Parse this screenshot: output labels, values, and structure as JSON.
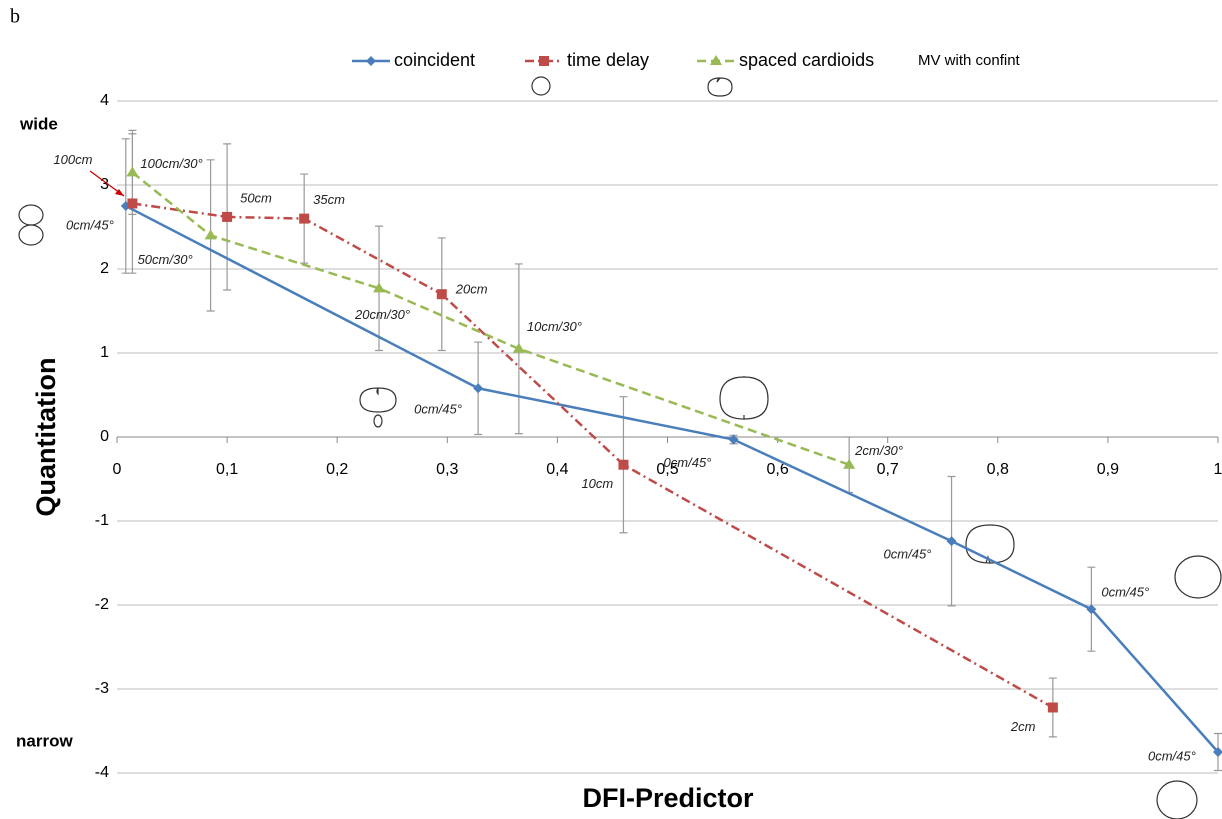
{
  "panel_label": "b",
  "chart_data": {
    "type": "line",
    "xlabel": "DFI-Predictor",
    "ylabel": "Quantitation",
    "upper_label": "wide",
    "lower_label": "narrow",
    "xlim": [
      0,
      1
    ],
    "ylim": [
      -4,
      4
    ],
    "xticks": [
      0,
      {
        "value": 0.1,
        "label": "0,1"
      },
      {
        "value": 0.2,
        "label": "0,2"
      },
      {
        "value": 0.3,
        "label": "0,3"
      },
      {
        "value": 0.4,
        "label": "0,4"
      },
      {
        "value": 0.5,
        "label": "0,5"
      },
      {
        "value": 0.6,
        "label": "0,6"
      },
      {
        "value": 0.7,
        "label": "0,7"
      },
      {
        "value": 0.8,
        "label": "0,8"
      },
      {
        "value": 0.9,
        "label": "0,9"
      },
      1
    ],
    "yticks": [
      -4,
      -3,
      -2,
      -1,
      0,
      1,
      2,
      3,
      4
    ],
    "grid": true,
    "legend_extra": "MV with confint",
    "series": [
      {
        "name": "coincident",
        "color": "#4a7ebb",
        "marker": "diamond",
        "dash": "solid",
        "x": [
          0.008,
          0.328,
          0.56,
          0.758,
          0.885,
          1.0
        ],
        "values": [
          2.75,
          0.58,
          -0.03,
          -1.24,
          -2.05,
          -3.75
        ],
        "errors": [
          0.8,
          0.55,
          0.05,
          0.77,
          0.5,
          0.22
        ],
        "point_labels": [
          "0cm/45°",
          "0cm/45°",
          "0cm/45°",
          "0cm/45°",
          "0cm/45°",
          "0cm/45°"
        ]
      },
      {
        "name": "time delay",
        "color": "#be4b48",
        "marker": "square",
        "dash": "dashdot",
        "x": [
          0.014,
          0.1,
          0.17,
          0.295,
          0.46,
          0.85
        ],
        "values": [
          2.78,
          2.62,
          2.6,
          1.7,
          -0.33,
          -3.22
        ],
        "errors": [
          0.83,
          0.87,
          0.53,
          0.67,
          0.81,
          0.35
        ],
        "point_labels": [
          "100cm",
          "50cm",
          "35cm",
          "20cm",
          "10cm",
          "2cm"
        ]
      },
      {
        "name": "spaced cardioids",
        "color": "#98b954",
        "marker": "triangle",
        "dash": "dashed",
        "x": [
          0.014,
          0.085,
          0.238,
          0.365,
          0.665
        ],
        "values": [
          3.15,
          2.4,
          1.77,
          1.05,
          -0.33
        ],
        "errors": [
          0.5,
          0.9,
          0.74,
          1.01,
          0.33
        ],
        "point_labels": [
          "100cm/30°",
          "50cm/30°",
          "20cm/30°",
          "10cm/30°",
          "2cm/30°"
        ]
      }
    ]
  }
}
